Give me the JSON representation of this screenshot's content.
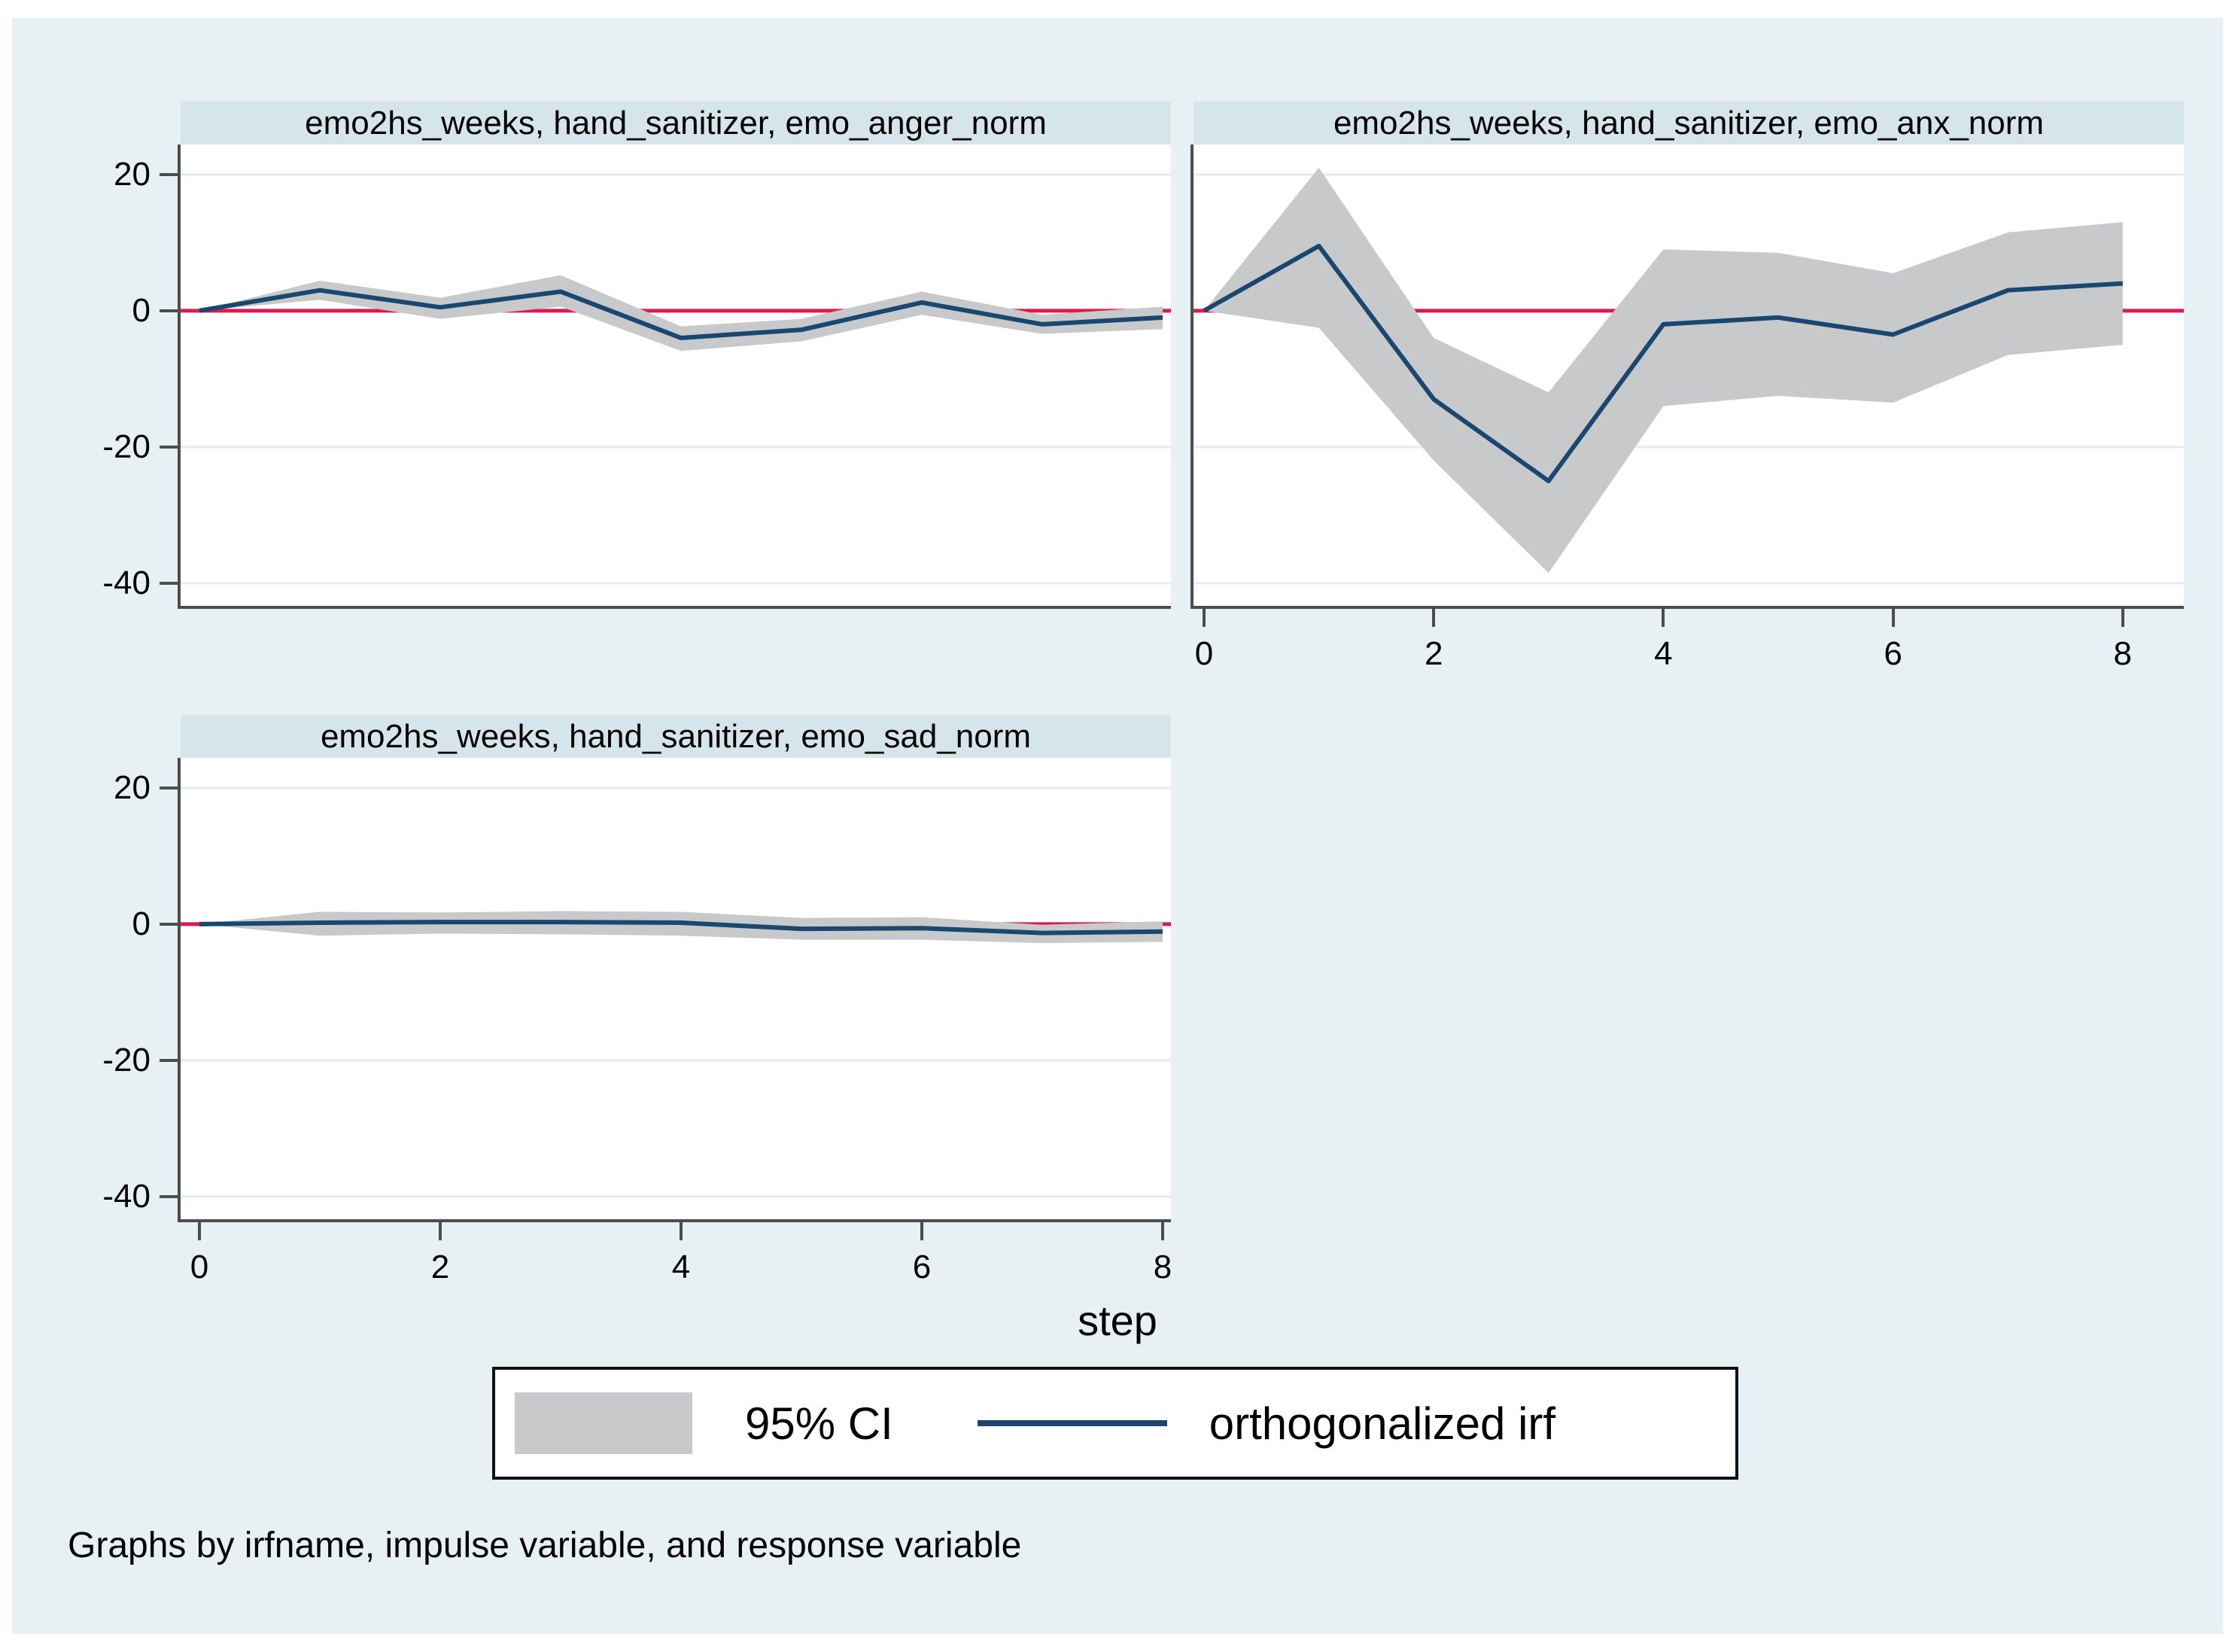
{
  "chart_data": {
    "type": "line",
    "x": [
      0,
      1,
      2,
      3,
      4,
      5,
      6,
      7,
      8
    ],
    "x_ticks": [
      0,
      2,
      4,
      6,
      8
    ],
    "y_ticks": [
      20,
      0,
      -20,
      -40
    ],
    "ylim": [
      -43.4,
      24.4
    ],
    "xlabel": "step",
    "grid": true,
    "legend_position": "bottom-center",
    "panels": [
      {
        "title": "emo2hs_weeks, hand_sanitizer, emo_anger_norm",
        "irf": [
          0,
          3.0,
          0.5,
          2.8,
          -4.0,
          -2.8,
          1.2,
          -2.0,
          -1.0
        ],
        "ci_upper": [
          0,
          4.4,
          1.9,
          5.2,
          -2.3,
          -1.2,
          2.8,
          -0.6,
          0.6
        ],
        "ci_lower": [
          0,
          1.6,
          -1.2,
          0.6,
          -5.9,
          -4.5,
          -0.6,
          -3.4,
          -2.7
        ]
      },
      {
        "title": "emo2hs_weeks, hand_sanitizer, emo_anx_norm",
        "irf": [
          0,
          9.5,
          -13.0,
          -25.0,
          -2.0,
          -1.0,
          -3.5,
          3.0,
          4.0
        ],
        "ci_upper": [
          0,
          21.0,
          -4.0,
          -12.0,
          9.0,
          8.5,
          5.5,
          11.5,
          13.0
        ],
        "ci_lower": [
          0,
          -2.5,
          -22.0,
          -38.5,
          -14.0,
          -12.5,
          -13.5,
          -6.5,
          -5.0
        ]
      },
      {
        "title": "emo2hs_weeks, hand_sanitizer, emo_sad_norm",
        "irf": [
          0,
          0.2,
          0.3,
          0.3,
          0.2,
          -0.7,
          -0.6,
          -1.3,
          -1.1
        ],
        "ci_upper": [
          0,
          1.8,
          1.7,
          1.9,
          1.8,
          0.9,
          1.0,
          -0.1,
          0.4
        ],
        "ci_lower": [
          0,
          -1.7,
          -1.4,
          -1.5,
          -1.7,
          -2.3,
          -2.3,
          -2.8,
          -2.6
        ]
      }
    ],
    "legend": [
      {
        "swatch": "band",
        "label": "95% CI"
      },
      {
        "swatch": "line",
        "label": "orthogonalized irf"
      }
    ],
    "caption": "Graphs by irfname, impulse variable, and response variable",
    "colors": {
      "irf_line": "#1a476f",
      "ci_band": "#c8c9ca",
      "zero_line": "#e0194d",
      "gridline": "#e2edf1",
      "axis": "#4d4d4d",
      "title_bar_bg": "#d6e5ec",
      "graph_region_bg": "#e7f0f2",
      "plot_bg": "#ffffff"
    }
  }
}
